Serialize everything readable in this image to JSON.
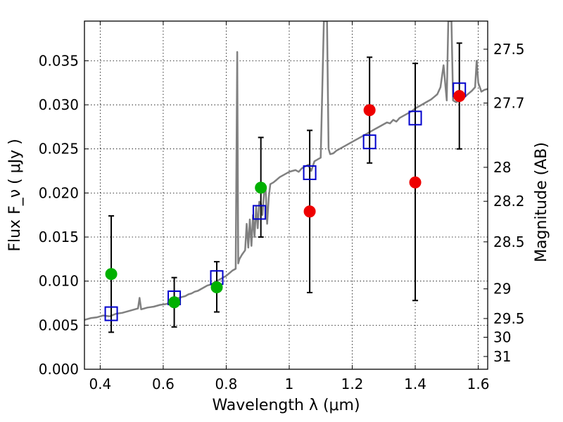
{
  "chart_data": {
    "type": "scatter",
    "title": "",
    "xlabel": "Wavelength  λ (μm)",
    "ylabel": "Flux  F_ν  ( μJy )",
    "ylabel_right": "Magnitude (AB)",
    "xlim": [
      0.35,
      1.63
    ],
    "ylim": [
      0.0,
      0.0395
    ],
    "grid": true,
    "x_ticks": [
      {
        "value": 0.4,
        "label": "0.4"
      },
      {
        "value": 0.6,
        "label": "0.6"
      },
      {
        "value": 0.8,
        "label": "0.8"
      },
      {
        "value": 1.0,
        "label": "1"
      },
      {
        "value": 1.2,
        "label": "1.2"
      },
      {
        "value": 1.4,
        "label": "1.4"
      },
      {
        "value": 1.6,
        "label": "1.6"
      }
    ],
    "y_ticks": [
      {
        "value": 0.0,
        "label": "0.000"
      },
      {
        "value": 0.005,
        "label": "0.005"
      },
      {
        "value": 0.01,
        "label": "0.010"
      },
      {
        "value": 0.015,
        "label": "0.015"
      },
      {
        "value": 0.02,
        "label": "0.020"
      },
      {
        "value": 0.025,
        "label": "0.025"
      },
      {
        "value": 0.03,
        "label": "0.030"
      },
      {
        "value": 0.035,
        "label": "0.035"
      }
    ],
    "y2_ticks": [
      {
        "mag": 27.5,
        "label": "27.5"
      },
      {
        "mag": 27.7,
        "label": "27.7"
      },
      {
        "mag": 28.0,
        "label": "28"
      },
      {
        "mag": 28.2,
        "label": "28.2"
      },
      {
        "mag": 28.5,
        "label": "28.5"
      },
      {
        "mag": 29.0,
        "label": "29"
      },
      {
        "mag": 29.5,
        "label": "29.5"
      },
      {
        "mag": 30.0,
        "label": "30"
      },
      {
        "mag": 31.0,
        "label": "31"
      }
    ],
    "colors": {
      "spectrum": "#808080",
      "model": "#0000cc",
      "green": "#00b000",
      "red": "#ee0000",
      "errorbar": "#000000"
    },
    "spectrum": {
      "x": [
        0.35,
        0.37,
        0.39,
        0.41,
        0.43,
        0.45,
        0.47,
        0.49,
        0.51,
        0.52,
        0.525,
        0.53,
        0.55,
        0.57,
        0.59,
        0.61,
        0.62,
        0.63,
        0.64,
        0.65,
        0.66,
        0.67,
        0.68,
        0.69,
        0.7,
        0.71,
        0.72,
        0.73,
        0.74,
        0.75,
        0.76,
        0.77,
        0.78,
        0.79,
        0.8,
        0.81,
        0.82,
        0.83,
        0.835,
        0.838,
        0.842,
        0.85,
        0.86,
        0.865,
        0.87,
        0.875,
        0.88,
        0.885,
        0.89,
        0.895,
        0.9,
        0.905,
        0.91,
        0.915,
        0.92,
        0.925,
        0.93,
        0.935,
        0.94,
        0.95,
        0.96,
        0.97,
        0.98,
        0.99,
        1.0,
        1.01,
        1.02,
        1.03,
        1.04,
        1.05,
        1.06,
        1.07,
        1.08,
        1.09,
        1.1,
        1.11,
        1.115,
        1.12,
        1.125,
        1.13,
        1.14,
        1.15,
        1.16,
        1.17,
        1.18,
        1.19,
        1.2,
        1.21,
        1.22,
        1.23,
        1.24,
        1.25,
        1.26,
        1.27,
        1.28,
        1.29,
        1.3,
        1.31,
        1.32,
        1.33,
        1.34,
        1.35,
        1.36,
        1.37,
        1.38,
        1.39,
        1.4,
        1.41,
        1.42,
        1.43,
        1.44,
        1.45,
        1.46,
        1.47,
        1.48,
        1.49,
        1.5,
        1.505,
        1.51,
        1.515,
        1.52,
        1.53,
        1.54,
        1.55,
        1.56,
        1.57,
        1.58,
        1.59,
        1.595,
        1.6,
        1.61,
        1.62,
        1.63
      ],
      "y": [
        0.0056,
        0.0058,
        0.0059,
        0.0061,
        0.006,
        0.0063,
        0.0064,
        0.0066,
        0.0068,
        0.0069,
        0.0081,
        0.0068,
        0.007,
        0.0071,
        0.0073,
        0.0074,
        0.0076,
        0.0078,
        0.008,
        0.0081,
        0.0082,
        0.0083,
        0.0085,
        0.0086,
        0.0088,
        0.0089,
        0.0091,
        0.0093,
        0.0095,
        0.0096,
        0.0098,
        0.01,
        0.0102,
        0.0104,
        0.0106,
        0.0109,
        0.0112,
        0.0114,
        0.036,
        0.012,
        0.0125,
        0.013,
        0.0135,
        0.0165,
        0.0138,
        0.017,
        0.014,
        0.0175,
        0.015,
        0.0185,
        0.016,
        0.019,
        0.0188,
        0.0175,
        0.02,
        0.0205,
        0.0165,
        0.0195,
        0.021,
        0.0212,
        0.0215,
        0.0218,
        0.022,
        0.0222,
        0.0224,
        0.0225,
        0.0226,
        0.0224,
        0.0228,
        0.023,
        0.0232,
        0.0225,
        0.0236,
        0.0238,
        0.024,
        0.0395,
        0.0395,
        0.0395,
        0.025,
        0.0244,
        0.0245,
        0.0248,
        0.025,
        0.0252,
        0.0254,
        0.0256,
        0.0258,
        0.026,
        0.0262,
        0.0264,
        0.0266,
        0.0268,
        0.027,
        0.0272,
        0.0274,
        0.0276,
        0.0278,
        0.028,
        0.0279,
        0.0283,
        0.0281,
        0.0285,
        0.0287,
        0.0289,
        0.0291,
        0.0293,
        0.0296,
        0.0298,
        0.03,
        0.0302,
        0.0304,
        0.0306,
        0.0309,
        0.0312,
        0.032,
        0.0345,
        0.0305,
        0.0395,
        0.0395,
        0.0395,
        0.0305,
        0.0303,
        0.0305,
        0.0307,
        0.031,
        0.0313,
        0.0316,
        0.032,
        0.035,
        0.0325,
        0.0315,
        0.0317,
        0.0318
      ]
    },
    "series": [
      {
        "marker": "square",
        "color_key": "model",
        "x": [
          0.435,
          0.635,
          0.77,
          0.905,
          1.065,
          1.255,
          1.4,
          1.54
        ],
        "y": [
          0.0063,
          0.0081,
          0.0104,
          0.0178,
          0.0223,
          0.0258,
          0.0285,
          0.0317
        ]
      },
      {
        "marker": "circle",
        "color_key": "green",
        "x": [
          0.435,
          0.635,
          0.77,
          0.91
        ],
        "y": [
          0.0108,
          0.0076,
          0.0093,
          0.0206
        ]
      },
      {
        "marker": "circle",
        "color_key": "red",
        "x": [
          1.065,
          1.255,
          1.4,
          1.54
        ],
        "y": [
          0.0179,
          0.0294,
          0.0212,
          0.031
        ]
      }
    ],
    "errorbars": [
      {
        "x": 0.435,
        "low": 0.0042,
        "high": 0.0174
      },
      {
        "x": 0.635,
        "low": 0.0048,
        "high": 0.0104
      },
      {
        "x": 0.77,
        "low": 0.0065,
        "high": 0.0122
      },
      {
        "x": 0.91,
        "low": 0.015,
        "high": 0.0263
      },
      {
        "x": 1.065,
        "low": 0.0087,
        "high": 0.0271
      },
      {
        "x": 1.255,
        "low": 0.0234,
        "high": 0.0354
      },
      {
        "x": 1.4,
        "low": 0.0078,
        "high": 0.0347
      },
      {
        "x": 1.54,
        "low": 0.025,
        "high": 0.037
      }
    ]
  }
}
